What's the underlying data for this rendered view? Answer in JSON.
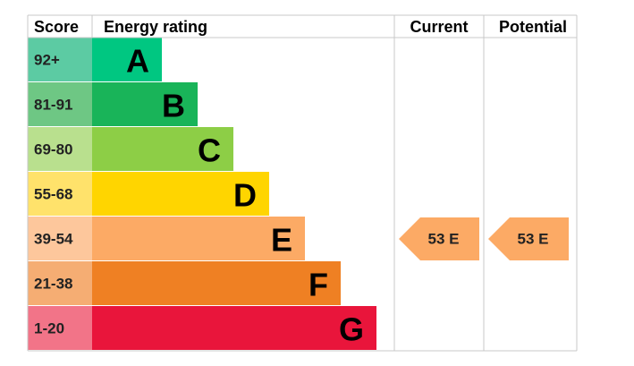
{
  "header": {
    "score": "Score",
    "rating": "Energy rating",
    "current": "Current",
    "potential": "Potential"
  },
  "rows": [
    {
      "score": "92+",
      "band": "A",
      "color": "#00c781",
      "score_color": "#5ccba3"
    },
    {
      "score": "81-91",
      "band": "B",
      "color": "#19b459",
      "score_color": "#6ec784"
    },
    {
      "score": "69-80",
      "band": "C",
      "color": "#8dce46",
      "score_color": "#b9e08e"
    },
    {
      "score": "55-68",
      "band": "D",
      "color": "#ffd500",
      "score_color": "#ffe26b"
    },
    {
      "score": "39-54",
      "band": "E",
      "color": "#fcaa65",
      "score_color": "#fdc79c"
    },
    {
      "score": "21-38",
      "band": "F",
      "color": "#ef8023",
      "score_color": "#f5ad73"
    },
    {
      "score": "1-20",
      "band": "G",
      "color": "#e9153b",
      "score_color": "#f27488"
    }
  ],
  "current": {
    "label": "53 E",
    "color": "#fcaa65"
  },
  "potential": {
    "label": "53 E",
    "color": "#fcaa65"
  }
}
